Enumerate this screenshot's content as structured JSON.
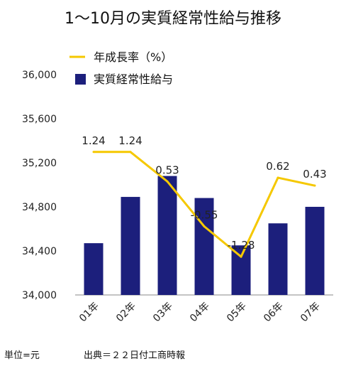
{
  "chart_data": {
    "type": "bar+line",
    "title": "1～10月の実質経常性給与推移",
    "categories": [
      "01年",
      "02年",
      "03年",
      "04年",
      "05年",
      "06年",
      "07年"
    ],
    "series": [
      {
        "name": "実質経常性給与",
        "type": "bar",
        "color": "#1c1f7c",
        "values": [
          34470,
          34890,
          35080,
          34880,
          34450,
          34650,
          34800
        ]
      },
      {
        "name": "年成長率（%）",
        "type": "line",
        "color": "#f5c800",
        "values": [
          1.24,
          1.24,
          0.53,
          -0.55,
          -1.28,
          0.62,
          0.43
        ]
      }
    ],
    "y_axis": {
      "ylim": [
        34000,
        36000
      ],
      "ticks": [
        "34,000",
        "34,400",
        "34,800",
        "35,200",
        "35,600",
        "36,000"
      ],
      "tick_values": [
        34000,
        34400,
        34800,
        35200,
        35600,
        36000
      ]
    },
    "line_axis": {
      "ylim": [
        -2.2,
        3.1
      ]
    },
    "legend_position": "top-left",
    "grid": false
  },
  "footer": {
    "unit": "単位=元",
    "source": "出典＝２２日付工商時報"
  }
}
